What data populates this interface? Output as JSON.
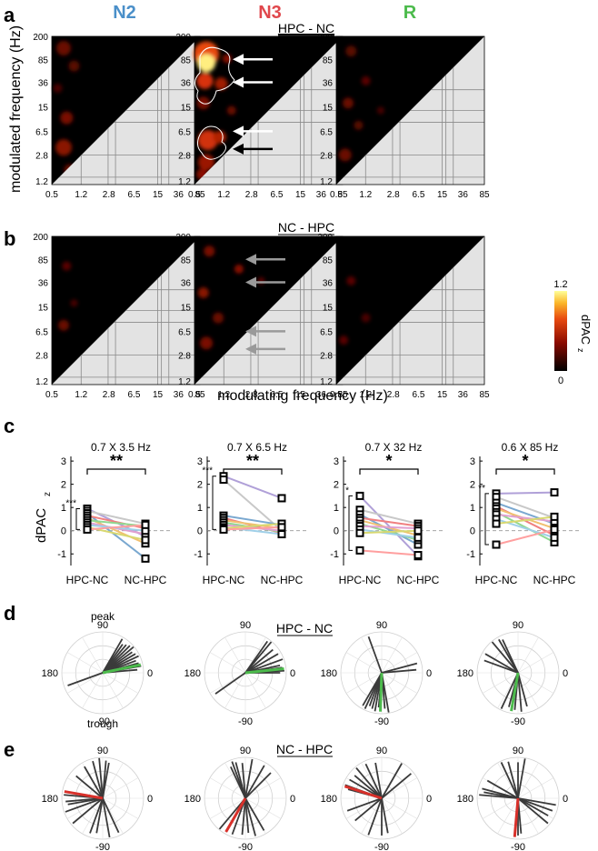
{
  "panel_letters": [
    "a",
    "b",
    "c",
    "d",
    "e"
  ],
  "colors": {
    "N2": "#4a8fc9",
    "N3": "#e0474c",
    "R": "#4cbb4c",
    "heat_low": "#000000",
    "heat_high": "#ffff9a",
    "lower_triangle": "#e3e3e3",
    "polar_gray": "#3a3a3a",
    "polar_highlight_green": "#4cbb4c",
    "polar_highlight_red": "#d8302a",
    "arrow_white": "#ffffff",
    "arrow_black": "#000000",
    "arrow_gray": "#9a9a9a"
  },
  "stage_headers": [
    "N2",
    "N3",
    "R"
  ],
  "heatmaps": {
    "title_a": "HPC - NC",
    "title_b": "NC - HPC",
    "y_label": "modulated frequency (Hz)",
    "x_label": "modulating frequency (Hz)",
    "y_ticks": [
      "200",
      "85",
      "36",
      "15",
      "6.5",
      "2.8",
      "1.2"
    ],
    "x_ticks": [
      "0.5",
      "1.2",
      "2.8",
      "6.5",
      "15",
      "36",
      "85"
    ],
    "colorbar": {
      "label_main": "dPAC",
      "label_sub": "z",
      "max": "1.2",
      "min": "0"
    },
    "arrows_a_n3": [
      {
        "freq_hz": 85,
        "color": "white"
      },
      {
        "freq_hz": 32,
        "color": "white"
      },
      {
        "freq_hz": 6.5,
        "color": "white"
      },
      {
        "freq_hz": 3.5,
        "color": "black"
      }
    ],
    "arrows_b_n3": [
      {
        "freq_hz": 85,
        "color": "gray"
      },
      {
        "freq_hz": 32,
        "color": "gray"
      },
      {
        "freq_hz": 6.5,
        "color": "gray"
      },
      {
        "freq_hz": 3.5,
        "color": "gray"
      }
    ]
  },
  "chart_data": [
    {
      "type": "line",
      "title": "0.7 X 3.5 Hz",
      "ylabel_main": "dPAC",
      "ylabel_sub": "z",
      "categories": [
        "HPC-NC",
        "NC-HPC"
      ],
      "ylim": [
        -1.5,
        3.2
      ],
      "yticks": [
        "3",
        "2",
        "1",
        "0",
        "-1"
      ],
      "significance": "**",
      "bracket_significance": "***",
      "pairs": [
        [
          0.95,
          -0.25
        ],
        [
          0.85,
          0.3
        ],
        [
          0.75,
          -1.2
        ],
        [
          0.65,
          0.1
        ],
        [
          0.55,
          -0.55
        ],
        [
          0.45,
          0.2
        ],
        [
          0.35,
          -0.15
        ],
        [
          0.25,
          0.0
        ],
        [
          0.15,
          -0.4
        ],
        [
          0.05,
          0.25
        ]
      ]
    },
    {
      "type": "line",
      "title": "0.7 X 6.5 Hz",
      "categories": [
        "HPC-NC",
        "NC-HPC"
      ],
      "ylim": [
        -1.5,
        3.2
      ],
      "yticks": [
        "3",
        "2",
        "1",
        "0",
        "-1"
      ],
      "significance": "**",
      "bracket_significance": "***",
      "pairs": [
        [
          2.35,
          1.4
        ],
        [
          2.2,
          0.0
        ],
        [
          0.65,
          0.25
        ],
        [
          0.55,
          -0.1
        ],
        [
          0.45,
          0.1
        ],
        [
          0.35,
          -0.05
        ],
        [
          0.25,
          0.0
        ],
        [
          0.15,
          -0.15
        ],
        [
          0.1,
          0.3
        ],
        [
          0.05,
          0.15
        ]
      ]
    },
    {
      "type": "line",
      "title": "0.7 X 32 Hz",
      "categories": [
        "HPC-NC",
        "NC-HPC"
      ],
      "ylim": [
        -1.5,
        3.2
      ],
      "yticks": [
        "3",
        "2",
        "1",
        "0",
        "-1"
      ],
      "significance": "*",
      "bracket_significance": "*",
      "pairs": [
        [
          1.5,
          -1.1
        ],
        [
          0.9,
          0.3
        ],
        [
          0.7,
          -0.6
        ],
        [
          0.55,
          0.2
        ],
        [
          0.45,
          -0.2
        ],
        [
          0.3,
          -0.4
        ],
        [
          0.2,
          0.1
        ],
        [
          0.05,
          -0.3
        ],
        [
          -0.1,
          0.0
        ],
        [
          -0.85,
          -1.05
        ]
      ]
    },
    {
      "type": "line",
      "title": "0.6 X 85 Hz",
      "categories": [
        "HPC-NC",
        "NC-HPC"
      ],
      "ylim": [
        -1.5,
        3.2
      ],
      "yticks": [
        "3",
        "2",
        "1",
        "0",
        "-1"
      ],
      "significance": "*",
      "bracket_significance": "**",
      "pairs": [
        [
          1.6,
          1.65
        ],
        [
          1.45,
          0.55
        ],
        [
          1.2,
          0.3
        ],
        [
          1.05,
          -0.2
        ],
        [
          0.95,
          0.1
        ],
        [
          0.8,
          -0.5
        ],
        [
          0.7,
          0.4
        ],
        [
          0.5,
          -0.3
        ],
        [
          0.3,
          0.6
        ],
        [
          -0.6,
          0.05
        ]
      ]
    }
  ],
  "polar": {
    "title_d": "HPC - NC",
    "title_e": "NC - HPC",
    "label_90": "90",
    "label_180": "180",
    "label_0": "0",
    "label_m90": "-90",
    "label_peak": "peak",
    "label_trough": "trough",
    "row_d": [
      {
        "angles": [
          5,
          10,
          15,
          20,
          25,
          30,
          35,
          40,
          45,
          50,
          55,
          60,
          200
        ],
        "highlight": 12
      },
      {
        "angles": [
          0,
          3,
          8,
          12,
          20,
          30,
          40,
          50,
          55,
          215
        ],
        "highlight": 6
      },
      {
        "angles": [
          -95,
          -100,
          -105,
          -110,
          -115,
          -120,
          -85,
          -80,
          110,
          15,
          5
        ],
        "highlight": -92
      },
      {
        "angles": [
          -75,
          -85,
          -95,
          -105,
          -115,
          150,
          160,
          130,
          120,
          115
        ],
        "highlight": -100
      }
    ],
    "row_e": [
      {
        "angles": [
          170,
          175,
          185,
          190,
          200,
          85,
          80,
          95,
          105,
          120,
          140,
          220,
          250,
          260,
          280,
          295
        ],
        "highlight": 170
      },
      {
        "angles": [
          115,
          110,
          105,
          95,
          80,
          60,
          45,
          230,
          250,
          265,
          275,
          285,
          300
        ],
        "highlight": 240
      },
      {
        "angles": [
          165,
          160,
          150,
          140,
          130,
          115,
          100,
          60,
          40,
          200,
          220,
          250,
          270,
          280
        ],
        "highlight": 162
      },
      {
        "angles": [
          170,
          175,
          165,
          150,
          115,
          105,
          90,
          80,
          -10,
          -20,
          -30,
          -40,
          270,
          275
        ],
        "highlight": 265
      }
    ]
  }
}
